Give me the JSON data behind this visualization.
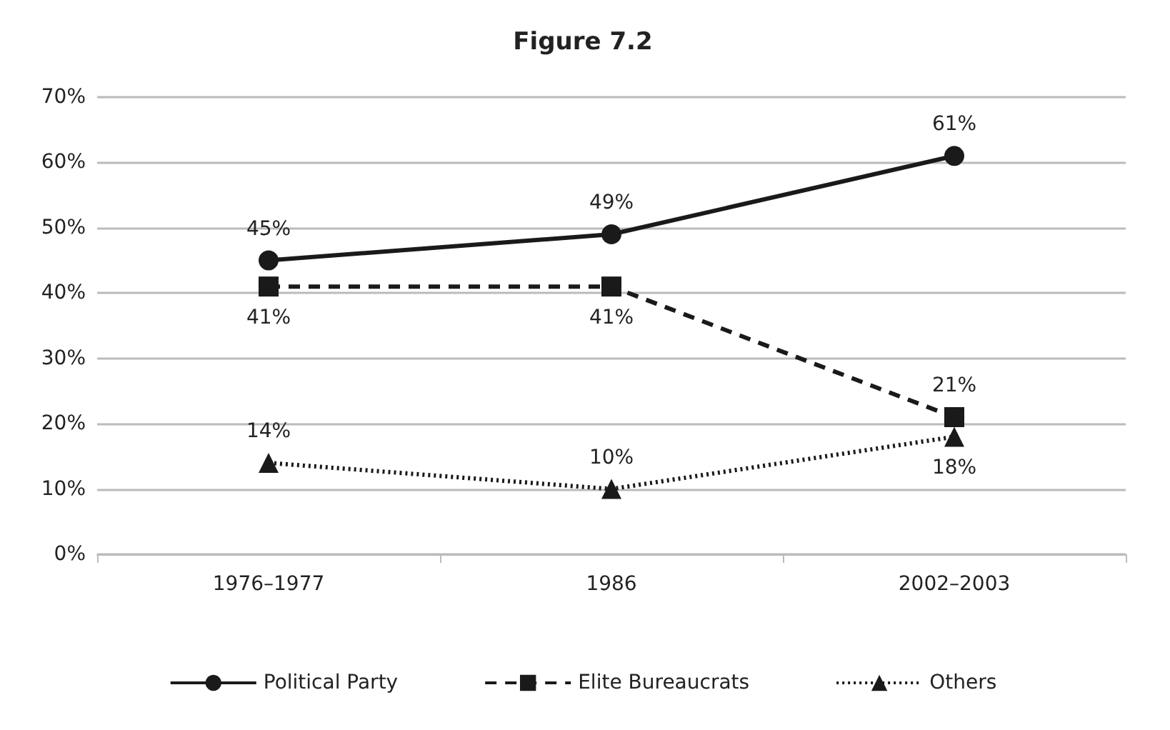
{
  "chart_data": {
    "type": "line",
    "title": "Figure 7.2",
    "categories": [
      "1976–1977",
      "1986",
      "2002–2003"
    ],
    "series": [
      {
        "name": "Political Party",
        "color": "#1a1a1a",
        "values": [
          45,
          49,
          61
        ],
        "value_labels": [
          "45%",
          "49%",
          "61%"
        ],
        "marker": "circle",
        "line_style": "solid"
      },
      {
        "name": "Elite Bureaucrats",
        "color": "#1a1a1a",
        "values": [
          41,
          41,
          21
        ],
        "value_labels": [
          "41%",
          "41%",
          "21%"
        ],
        "marker": "square",
        "line_style": "dashed"
      },
      {
        "name": "Others",
        "color": "#1a1a1a",
        "values": [
          14,
          10,
          18
        ],
        "value_labels": [
          "14%",
          "10%",
          "18%"
        ],
        "marker": "triangle",
        "line_style": "dotted"
      }
    ],
    "ylim": [
      0,
      70
    ],
    "yticks": [
      {
        "value": 0,
        "label": "0%"
      },
      {
        "value": 10,
        "label": "10%"
      },
      {
        "value": 20,
        "label": "20%"
      },
      {
        "value": 30,
        "label": "30%"
      },
      {
        "value": 40,
        "label": "40%"
      },
      {
        "value": 50,
        "label": "50%"
      },
      {
        "value": 60,
        "label": "60%"
      },
      {
        "value": 70,
        "label": "70%"
      }
    ],
    "grid": "y",
    "legend": "bottom"
  }
}
